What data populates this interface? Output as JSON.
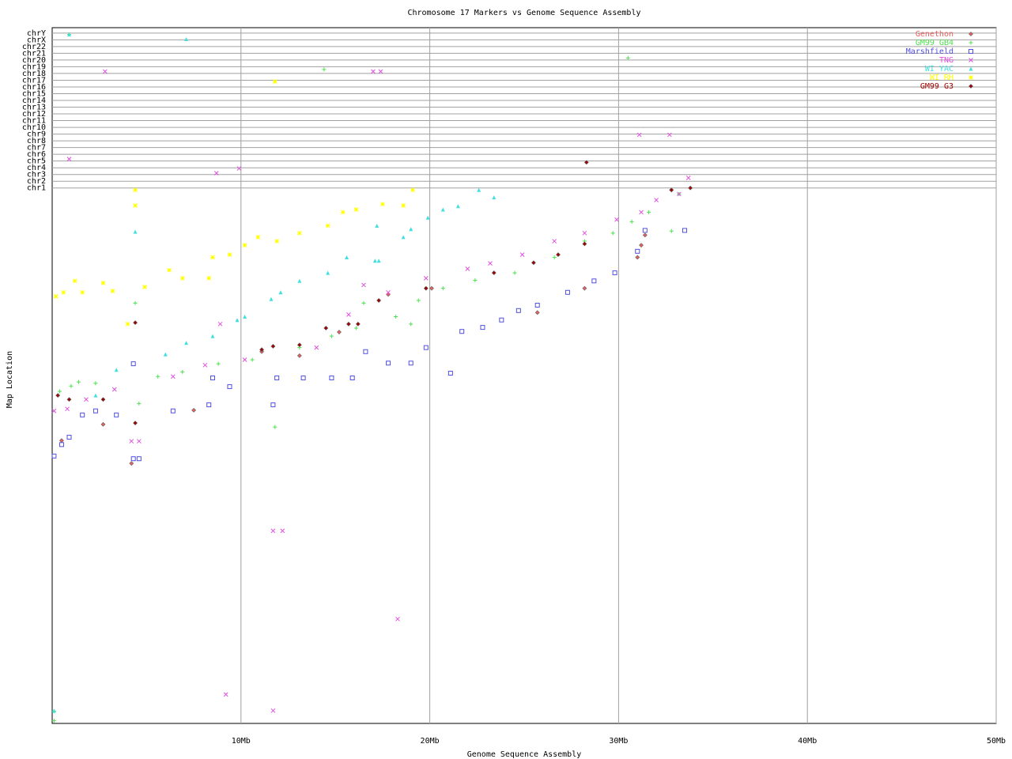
{
  "chart_data": {
    "type": "scatter",
    "title": "Chromosome 17 Markers vs Genome Sequence Assembly",
    "x_label": "Genome Sequence Assembly",
    "y_label": "Map Location",
    "xlim": [
      0,
      50
    ],
    "xticks": [
      {
        "value": 10,
        "label": "10Mb"
      },
      {
        "value": 20,
        "label": "20Mb"
      },
      {
        "value": 30,
        "label": "30Mb"
      },
      {
        "value": 40,
        "label": "40Mb"
      },
      {
        "value": 50,
        "label": "50Mb"
      }
    ],
    "ylim": [
      0,
      103.3
    ],
    "yticks": [
      {
        "value": 79.5,
        "label": "chr1"
      },
      {
        "value": 80.5,
        "label": "chr2"
      },
      {
        "value": 81.5,
        "label": "chr3"
      },
      {
        "value": 82.5,
        "label": "chr4"
      },
      {
        "value": 83.5,
        "label": "chr5"
      },
      {
        "value": 84.5,
        "label": "chr6"
      },
      {
        "value": 85.5,
        "label": "chr7"
      },
      {
        "value": 86.5,
        "label": "chr8"
      },
      {
        "value": 87.5,
        "label": "chr9"
      },
      {
        "value": 88.5,
        "label": "chr10"
      },
      {
        "value": 89.5,
        "label": "chr11"
      },
      {
        "value": 90.5,
        "label": "chr12"
      },
      {
        "value": 91.5,
        "label": "chr13"
      },
      {
        "value": 92.5,
        "label": "chr14"
      },
      {
        "value": 93.5,
        "label": "chr15"
      },
      {
        "value": 94.5,
        "label": "chr16"
      },
      {
        "value": 95.5,
        "label": "chr17"
      },
      {
        "value": 96.5,
        "label": "chr18"
      },
      {
        "value": 97.5,
        "label": "chr19"
      },
      {
        "value": 98.5,
        "label": "chr20"
      },
      {
        "value": 99.5,
        "label": "chr21"
      },
      {
        "value": 100.5,
        "label": "chr22"
      },
      {
        "value": 101.5,
        "label": "chrX"
      },
      {
        "value": 102.5,
        "label": "chrY"
      }
    ],
    "grid": true,
    "legend": "top-right",
    "series": [
      {
        "name": "Genethon",
        "color": "#e86060",
        "marker": "diamond",
        "x": [
          0.5,
          2.7,
          4.2,
          7.5,
          11.1,
          13.1,
          15.2,
          17.8,
          20.1,
          25.7,
          28.2,
          31.0,
          31.2,
          31.4,
          32.8
        ],
        "values": [
          42.0,
          44.4,
          38.6,
          46.5,
          55.2,
          54.6,
          58.1,
          63.7,
          64.6,
          61.0,
          64.6,
          69.2,
          71.0,
          72.5,
          79.2
        ]
      },
      {
        "name": "GM99 GB4",
        "color": "#50e050",
        "marker": "plus",
        "x": [
          0.1,
          0.1,
          0.4,
          1.0,
          1.4,
          2.3,
          4.4,
          4.6,
          5.6,
          6.9,
          8.8,
          10.6,
          11.8,
          13.1,
          14.8,
          16.1,
          16.5,
          18.2,
          19.0,
          19.4,
          20.7,
          22.4,
          24.5,
          26.6,
          28.2,
          29.7,
          30.7,
          31.6,
          32.8,
          33.2,
          30.5,
          14.4,
          0.9
        ],
        "values": [
          1.8,
          0.4,
          49.3,
          50.1,
          50.7,
          50.5,
          62.4,
          47.5,
          51.5,
          52.2,
          53.4,
          54.0,
          44.0,
          55.8,
          57.5,
          58.7,
          62.4,
          60.4,
          59.3,
          62.8,
          64.6,
          65.8,
          66.9,
          69.2,
          71.6,
          72.8,
          74.5,
          75.9,
          73.1,
          78.6,
          98.8,
          97.1,
          102.3
        ]
      },
      {
        "name": "Marshfield",
        "color": "#5050e0",
        "marker": "square",
        "x": [
          0.1,
          0.5,
          0.9,
          1.6,
          2.3,
          3.4,
          4.3,
          4.3,
          4.6,
          6.4,
          8.3,
          8.5,
          9.4,
          11.7,
          11.9,
          13.3,
          14.8,
          15.9,
          16.6,
          17.8,
          19.0,
          19.8,
          21.1,
          21.7,
          22.8,
          23.8,
          24.7,
          25.7,
          27.3,
          28.7,
          29.8,
          31.0,
          31.4,
          33.5
        ],
        "values": [
          39.7,
          41.4,
          42.5,
          45.8,
          46.4,
          45.8,
          53.4,
          39.3,
          39.3,
          46.4,
          47.3,
          51.3,
          50.0,
          47.3,
          51.3,
          51.3,
          51.3,
          51.3,
          55.2,
          53.5,
          53.5,
          55.8,
          52.0,
          58.2,
          58.8,
          59.9,
          61.3,
          62.1,
          64.0,
          65.7,
          66.9,
          70.1,
          73.2,
          73.2
        ]
      },
      {
        "name": "TNG",
        "color": "#e050e0",
        "marker": "cross",
        "x": [
          0.1,
          0.9,
          0.8,
          1.8,
          2.8,
          3.3,
          4.2,
          4.6,
          6.4,
          8.1,
          8.7,
          8.9,
          9.2,
          9.9,
          10.2,
          11.7,
          11.7,
          12.2,
          14.0,
          15.7,
          17.0,
          17.4,
          16.5,
          17.8,
          18.3,
          19.8,
          22.0,
          23.2,
          24.9,
          26.6,
          28.2,
          29.9,
          31.1,
          32.7,
          31.2,
          32.0,
          33.2,
          33.7
        ],
        "values": [
          46.4,
          83.8,
          46.7,
          48.1,
          96.8,
          49.6,
          41.9,
          41.9,
          51.5,
          53.2,
          81.7,
          59.3,
          4.3,
          82.4,
          54.0,
          28.6,
          1.9,
          28.6,
          55.8,
          60.7,
          96.8,
          96.8,
          65.1,
          64.0,
          15.5,
          66.1,
          67.5,
          68.3,
          69.6,
          71.6,
          72.8,
          74.8,
          87.4,
          87.4,
          75.9,
          77.7,
          78.6,
          81.0
        ]
      },
      {
        "name": "WI YAC",
        "color": "#40e0e0",
        "marker": "triangle",
        "x": [
          0.1,
          0.9,
          2.3,
          3.4,
          4.4,
          6.0,
          7.1,
          7.1,
          8.5,
          9.8,
          10.2,
          11.6,
          12.1,
          13.1,
          14.6,
          15.6,
          17.2,
          17.1,
          17.3,
          18.6,
          19.0,
          19.9,
          20.7,
          21.5,
          22.6,
          23.4
        ],
        "values": [
          1.9,
          102.3,
          48.7,
          52.5,
          73.0,
          54.8,
          101.6,
          56.5,
          57.5,
          59.9,
          60.4,
          63.0,
          64.0,
          65.7,
          66.9,
          69.2,
          73.9,
          68.7,
          68.7,
          72.2,
          73.4,
          75.1,
          76.3,
          76.8,
          79.2,
          78.1
        ]
      },
      {
        "name": "WI RH",
        "color": "#ffff00",
        "marker": "star",
        "x": [
          0.2,
          0.6,
          1.2,
          1.6,
          2.7,
          3.2,
          4.0,
          4.4,
          4.4,
          4.9,
          6.2,
          6.9,
          8.3,
          8.5,
          9.4,
          10.2,
          10.9,
          11.8,
          11.9,
          13.1,
          14.6,
          15.4,
          16.1,
          17.5,
          18.6,
          19.1
        ],
        "values": [
          63.4,
          64.0,
          65.7,
          64.0,
          65.4,
          64.2,
          59.3,
          79.2,
          76.9,
          64.8,
          67.3,
          66.1,
          66.1,
          69.2,
          69.6,
          71.0,
          72.2,
          95.3,
          71.6,
          72.8,
          73.9,
          75.9,
          76.3,
          77.1,
          76.9,
          79.2
        ]
      },
      {
        "name": "GM99 G3",
        "color": "#a00000",
        "marker": "diamond",
        "x": [
          0.3,
          0.9,
          2.7,
          4.4,
          4.4,
          11.1,
          11.7,
          13.1,
          14.5,
          15.7,
          16.2,
          17.3,
          19.8,
          23.4,
          25.5,
          26.8,
          28.2,
          28.3,
          32.8,
          33.8
        ],
        "values": [
          48.7,
          48.1,
          48.1,
          59.5,
          44.6,
          55.5,
          56.0,
          56.2,
          58.7,
          59.3,
          59.3,
          62.8,
          64.6,
          66.9,
          68.4,
          69.6,
          71.2,
          83.3,
          79.2,
          79.5
        ]
      }
    ]
  }
}
